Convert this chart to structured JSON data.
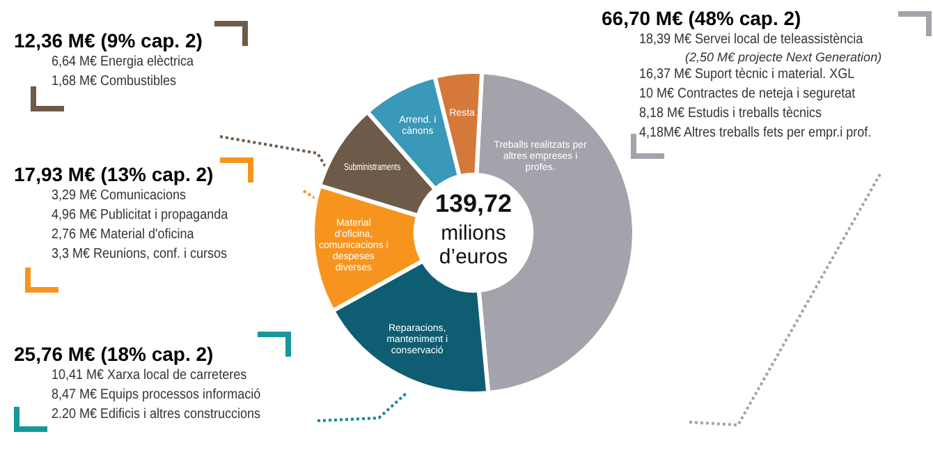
{
  "chart_data": {
    "type": "donut",
    "categories": [
      "Treballs realitzats per altres empreses i profes.",
      "Reparacions, manteniment i conservació",
      "Material d'oficina, comunicacions i despeses diverses",
      "Subministraments",
      "Arrend. i cànons",
      "Resta"
    ],
    "values": [
      47.7,
      18.4,
      12.8,
      8.8,
      7.6,
      4.7
    ],
    "colors": [
      "#a3a3ab",
      "#0f5d73",
      "#f7941d",
      "#6e5a48",
      "#3a98b8",
      "#d4793a"
    ],
    "annotations": [
      "12,36 M€ (9% cap. 2)",
      "6,64 M€ Energia elèctrica",
      "1,68 M€ Combustibles",
      "17,93 M€ (13% cap. 2)",
      "3,29 M€ Comunicacions",
      "4,96 M€ Publicitat i propaganda",
      "2,76 M€ Material d'oficina",
      "3,3 M€ Reunions, conf. i cursos",
      "25,76 M€ (18% cap. 2)",
      "10,41 M€ Xarxa local de carreteres",
      "8,47 M€ Equips processos informació",
      "2.20 M€ Edificis i altres construccions",
      "66,70 M€ (48% cap. 2)",
      "18,39 M€ Servei local de teleassistència",
      "(2,50 M€ projecte Next Generation)",
      "16,37 M€ Suport tècnic i material. XGL",
      "10 M€ Contractes de neteja i seguretat",
      "8,18 M€ Estudis i treballs tècnics",
      "4,18M€ Altres treballs fets per empr.i prof.",
      "139,72",
      "milions d’euros"
    ]
  }
}
